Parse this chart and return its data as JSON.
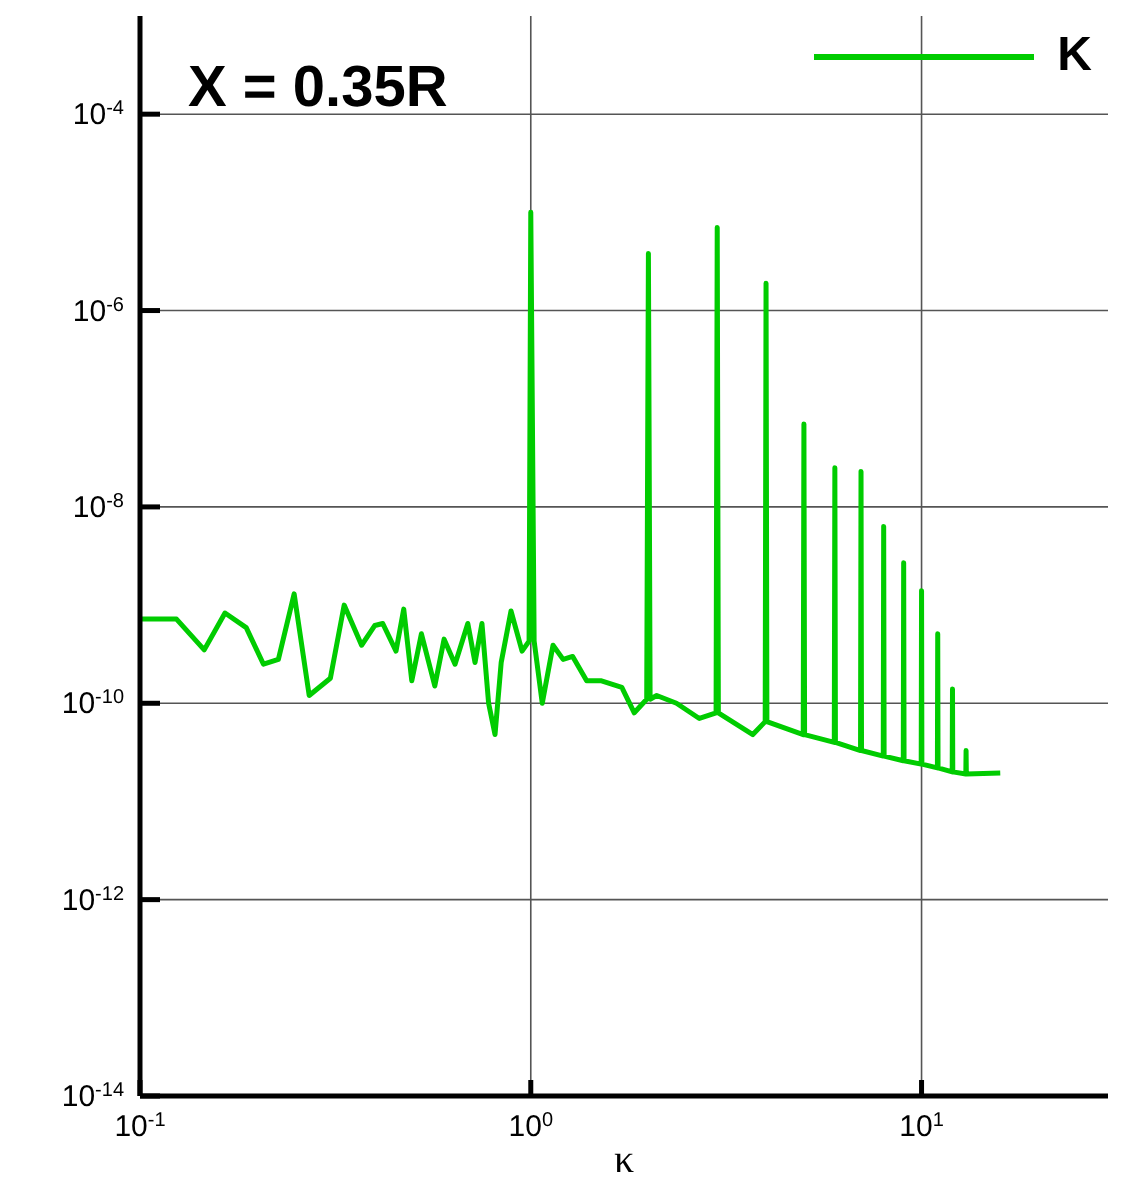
{
  "chart_data": {
    "type": "line",
    "title": "X = 0.35R",
    "xlabel": "κ",
    "log": "xy",
    "grid": true,
    "legend": "top right",
    "marker": "none",
    "line_style": "solid",
    "xlim": [
      0.1,
      30
    ],
    "xticks": [
      {
        "value": 0.1,
        "label": "10$^{-1}$"
      },
      {
        "value": 1,
        "label": "10$^{0}$"
      },
      {
        "value": 10,
        "label": "10$^{1}$"
      }
    ],
    "ylim": [
      1e-14,
      0.001
    ],
    "yticks": [
      {
        "value": 1e-14,
        "label": "10$^{-14}$"
      },
      {
        "value": 1e-12,
        "label": "10$^{-12}$"
      },
      {
        "value": 1e-10,
        "label": "10$^{-10}$"
      },
      {
        "value": 1e-08,
        "label": "10$^{-8}$"
      },
      {
        "value": 1e-06,
        "label": "10$^{-6}$"
      },
      {
        "value": 0.0001,
        "label": "10$^{-4}$"
      }
    ],
    "series": [
      {
        "name": "K",
        "color": "#00cc00",
        "x": [
          0.1,
          0.124,
          0.146,
          0.165,
          0.187,
          0.207,
          0.226,
          0.248,
          0.271,
          0.307,
          0.333,
          0.369,
          0.399,
          0.418,
          0.452,
          0.473,
          0.496,
          0.525,
          0.568,
          0.6,
          0.64,
          0.69,
          0.72,
          0.75,
          0.78,
          0.81,
          0.84,
          0.89,
          0.95,
          0.99,
          1.0,
          1.02,
          1.07,
          1.14,
          1.21,
          1.28,
          1.39,
          1.51,
          1.71,
          1.84,
          1.98,
          2.0,
          2.02,
          2.1,
          2.36,
          2.7,
          2.98,
          3.0,
          3.02,
          3.7,
          3.98,
          4.0,
          4.02,
          4.98,
          5.0,
          5.02,
          5.98,
          6.0,
          6.02,
          6.98,
          7.0,
          7.02,
          7.98,
          8.0,
          8.02,
          8.98,
          9.0,
          9.02,
          9.98,
          10.0,
          10.02,
          10.98,
          11.0,
          11.02,
          11.98,
          12.0,
          12.02,
          12.98,
          13.0,
          13.02,
          15.9
        ],
        "values": [
          7.2e-10,
          7.2e-10,
          3.5e-10,
          8.3e-10,
          5.9e-10,
          2.5e-10,
          2.8e-10,
          1.3e-09,
          1.2e-10,
          1.8e-10,
          1e-09,
          3.9e-10,
          6.2e-10,
          6.5e-10,
          3.4e-10,
          9.1e-10,
          1.7e-10,
          5.1e-10,
          1.5e-10,
          4.5e-10,
          2.5e-10,
          6.5e-10,
          2.6e-10,
          6.5e-10,
          1e-10,
          4.8e-11,
          2.6e-10,
          8.7e-10,
          3.4e-10,
          4.3e-10,
          1e-05,
          4.3e-10,
          1e-10,
          3.9e-10,
          2.8e-10,
          3e-10,
          1.7e-10,
          1.7e-10,
          1.45e-10,
          8e-11,
          1.1e-10,
          3.8e-06,
          1.1e-10,
          1.2e-10,
          1e-10,
          7e-11,
          8e-11,
          7e-06,
          8e-11,
          4.8e-11,
          6.5e-11,
          1.9e-06,
          6.5e-11,
          4.8e-11,
          7e-08,
          4.8e-11,
          4e-11,
          2.5e-08,
          4e-11,
          3.3e-11,
          2.3e-08,
          3.3e-11,
          2.9e-11,
          6.3e-09,
          2.9e-11,
          2.6e-11,
          2.7e-09,
          2.6e-11,
          2.4e-11,
          1.4e-09,
          2.4e-11,
          2.2e-11,
          5.1e-10,
          2.2e-11,
          2e-11,
          1.4e-10,
          2e-11,
          1.9e-11,
          3.3e-11,
          1.9e-11,
          1.95e-11
        ]
      }
    ]
  }
}
